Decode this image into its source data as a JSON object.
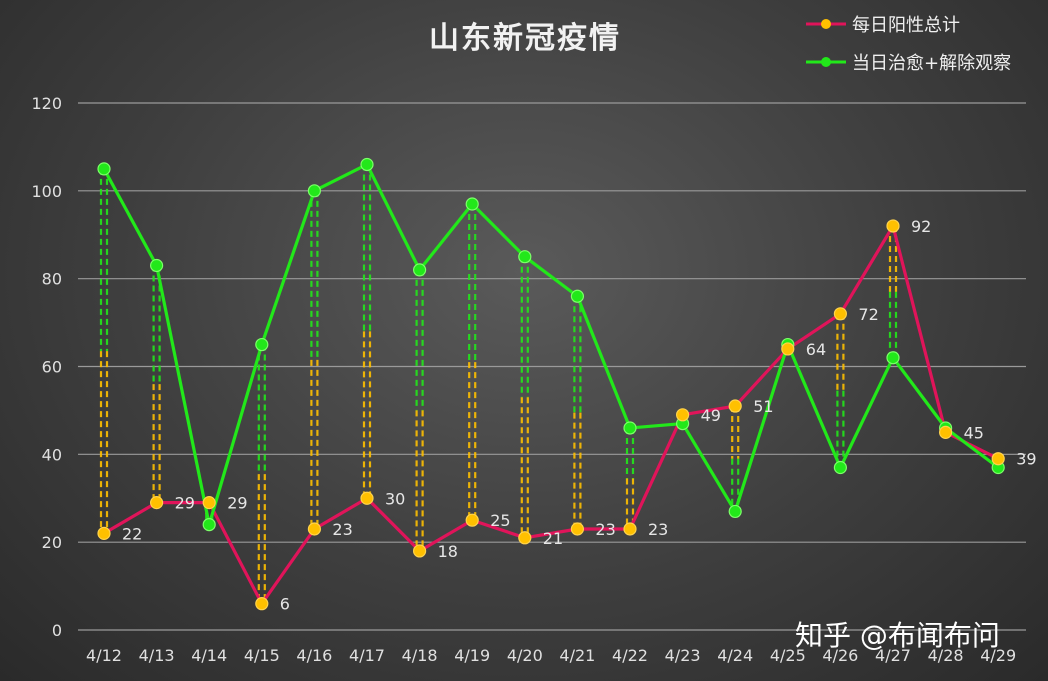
{
  "chart_data": {
    "type": "line",
    "title": "山东新冠疫情",
    "categories": [
      "4/12",
      "4/13",
      "4/14",
      "4/15",
      "4/16",
      "4/17",
      "4/18",
      "4/19",
      "4/20",
      "4/21",
      "4/22",
      "4/23",
      "4/24",
      "4/25",
      "4/26",
      "4/27",
      "4/28",
      "4/29"
    ],
    "series": [
      {
        "name": "每日阳性总计",
        "color": "#e0145a",
        "marker_color": "#ffc000",
        "values": [
          22,
          29,
          29,
          6,
          23,
          30,
          18,
          25,
          21,
          23,
          23,
          49,
          51,
          64,
          72,
          92,
          45,
          39
        ],
        "labels": [
          "22",
          "29",
          "29",
          "6",
          "23",
          "30",
          "18",
          "25",
          "21",
          "23",
          "23",
          "49",
          "51",
          "64",
          "72",
          "92",
          "45",
          "39"
        ]
      },
      {
        "name": "当日治愈+解除观察",
        "color": "#22e81a",
        "marker_color": "#22e81a",
        "values": [
          105,
          83,
          24,
          65,
          100,
          106,
          82,
          97,
          85,
          76,
          46,
          47,
          27,
          65,
          37,
          62,
          46,
          37
        ]
      }
    ],
    "ylim": [
      0,
      120
    ],
    "yticks": [
      "0",
      "20",
      "40",
      "60",
      "80",
      "100",
      "120"
    ],
    "grid": true,
    "legend_position": "top-right"
  },
  "watermark": "知乎 @布闻布问"
}
